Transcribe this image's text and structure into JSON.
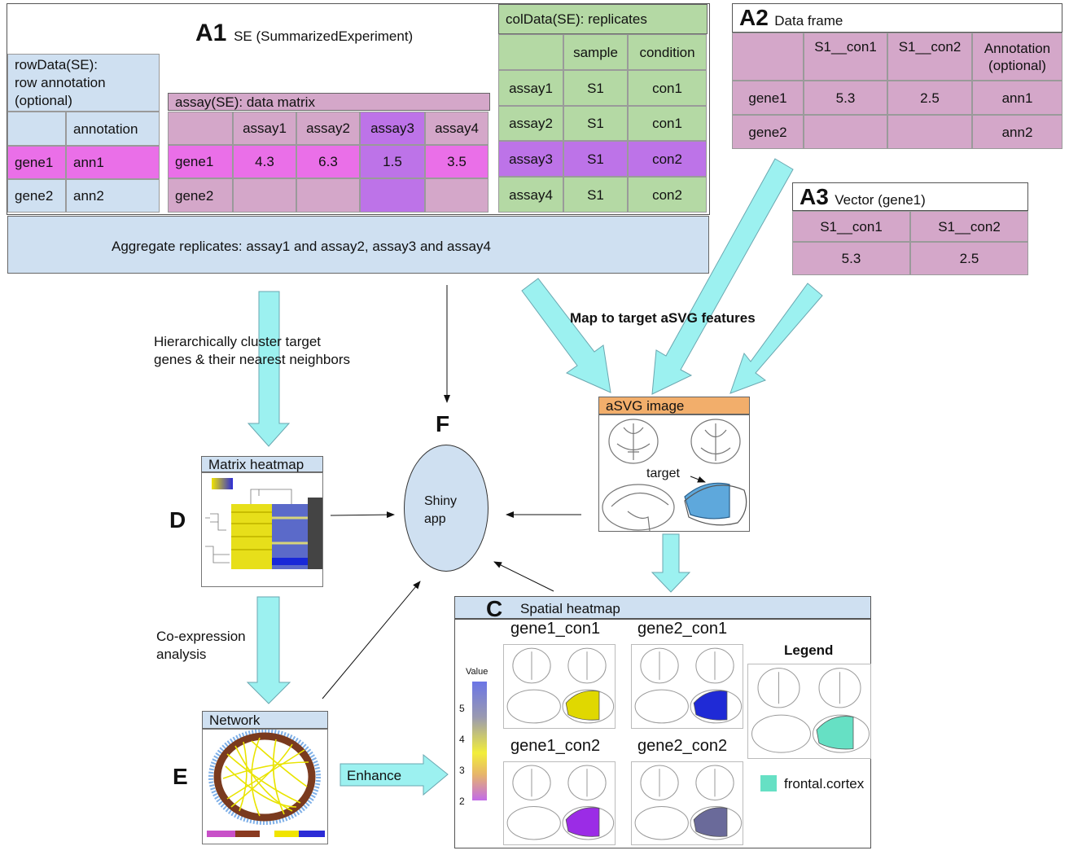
{
  "a1": {
    "letter": "A1",
    "title": "SE (SummarizedExperiment)"
  },
  "rowdata": {
    "title_lines": [
      "rowData(SE):",
      "row annotation",
      "(optional)"
    ],
    "header": [
      "",
      "annotation"
    ],
    "rows": [
      [
        "gene1",
        "ann1"
      ],
      [
        "gene2",
        "ann2"
      ]
    ]
  },
  "assay": {
    "title": "assay(SE): data matrix",
    "header": [
      "",
      "assay1",
      "assay2",
      "assay3",
      "assay4"
    ],
    "rows": [
      [
        "gene1",
        "4.3",
        "6.3",
        "1.5",
        "3.5"
      ],
      [
        "gene2",
        "",
        "",
        "",
        ""
      ]
    ]
  },
  "coldata": {
    "title": "colData(SE): replicates",
    "header": [
      "",
      "sample",
      "condition"
    ],
    "rows": [
      [
        "assay1",
        "S1",
        "con1"
      ],
      [
        "assay2",
        "S1",
        "con1"
      ],
      [
        "assay3",
        "S1",
        "con2"
      ],
      [
        "assay4",
        "S1",
        "con2"
      ]
    ]
  },
  "a2": {
    "letter": "A2",
    "title": "Data frame",
    "header": [
      "",
      "S1__con1",
      "S1__con2",
      "Annotation\n(optional)"
    ],
    "rows": [
      [
        "gene1",
        "5.3",
        "2.5",
        "ann1"
      ],
      [
        "gene2",
        "",
        "",
        "ann2"
      ]
    ]
  },
  "a3": {
    "letter": "A3",
    "title": "Vector (gene1)",
    "header": [
      "S1__con1",
      "S1__con2"
    ],
    "row": [
      "5.3",
      "2.5"
    ]
  },
  "aggregate": "Aggregate replicates: assay1 and assay2, assay3 and assay4",
  "cluster_text": [
    "Hierarchically cluster target",
    "genes & their nearest neighbors"
  ],
  "map_text": "Map to target aSVG features",
  "asvg": {
    "title": "aSVG image",
    "target": "target"
  },
  "f": {
    "letter": "F",
    "label_lines": [
      "Shiny",
      "app"
    ]
  },
  "d": {
    "letter": "D",
    "title": "Matrix heatmap"
  },
  "coexp_text": [
    "Co-expression",
    "analysis"
  ],
  "e": {
    "letter": "E",
    "title": "Network"
  },
  "enhance": "Enhance",
  "c": {
    "letter": "C",
    "title": "Spatial heatmap",
    "panels": [
      {
        "label": "gene1_con1",
        "color": "#e0d800"
      },
      {
        "label": "gene2_con1",
        "color": "#1f2ad6"
      },
      {
        "label": "gene1_con2",
        "color": "#9b2ce6"
      },
      {
        "label": "gene2_con2",
        "color": "#6a6a9a"
      }
    ],
    "value_label": "Value",
    "value_ticks": [
      "5",
      "4",
      "3",
      "2"
    ],
    "legend_title": "Legend",
    "legend_item": "frontal.cortex",
    "legend_color": "#66e0c4"
  },
  "colors": {
    "pink": "#d4a7c9",
    "magenta": "#ea6fe8",
    "purple": "#bd73e8",
    "green": "#b4d9a4",
    "blue": "#cfe0f1",
    "orange": "#f2ae6b",
    "cyan": "#99f3f1"
  }
}
